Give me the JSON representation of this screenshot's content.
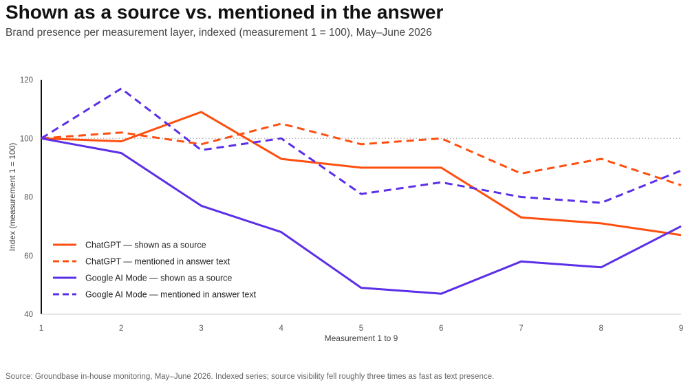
{
  "header": {
    "title": "Shown as a source vs. mentioned in the answer",
    "subtitle": "Brand presence per measurement layer, indexed (measurement 1 = 100), May–June 2026"
  },
  "footer": {
    "source": "Source: Groundbase in-house monitoring, May–June 2026. Indexed series; source visibility fell roughly three times as fast as text presence."
  },
  "chart_data": {
    "type": "line",
    "title": "Shown as a source vs. mentioned in the answer",
    "subtitle": "Brand presence per measurement layer, indexed (measurement 1 = 100), May–June 2026",
    "xlabel": "Measurement 1 to 9",
    "ylabel": "Index (measurement 1 = 100)",
    "x": [
      1,
      2,
      3,
      4,
      5,
      6,
      7,
      8,
      9
    ],
    "ylim": [
      40,
      120
    ],
    "yticks": [
      40,
      60,
      80,
      100,
      120
    ],
    "reference_line": {
      "y": 100,
      "style": "dotted",
      "color": "#aaaaaa"
    },
    "grid": false,
    "legend_position": "bottom-left",
    "series": [
      {
        "name": "ChatGPT — shown as a source",
        "color": "#ff4f0f",
        "dashed": false,
        "values": [
          100,
          99,
          109,
          93,
          90,
          90,
          73,
          71,
          67
        ]
      },
      {
        "name": "ChatGPT — mentioned in answer text",
        "color": "#ff4f0f",
        "dashed": true,
        "values": [
          100,
          102,
          98,
          105,
          98,
          100,
          88,
          93,
          84
        ]
      },
      {
        "name": "Google AI Mode — shown as a source",
        "color": "#5b2fe8",
        "dashed": false,
        "values": [
          100,
          95,
          77,
          68,
          49,
          47,
          58,
          56,
          70
        ]
      },
      {
        "name": "Google AI Mode — mentioned in answer text",
        "color": "#5b2fe8",
        "dashed": true,
        "values": [
          100,
          117,
          96,
          100,
          81,
          85,
          80,
          78,
          89
        ]
      }
    ]
  }
}
